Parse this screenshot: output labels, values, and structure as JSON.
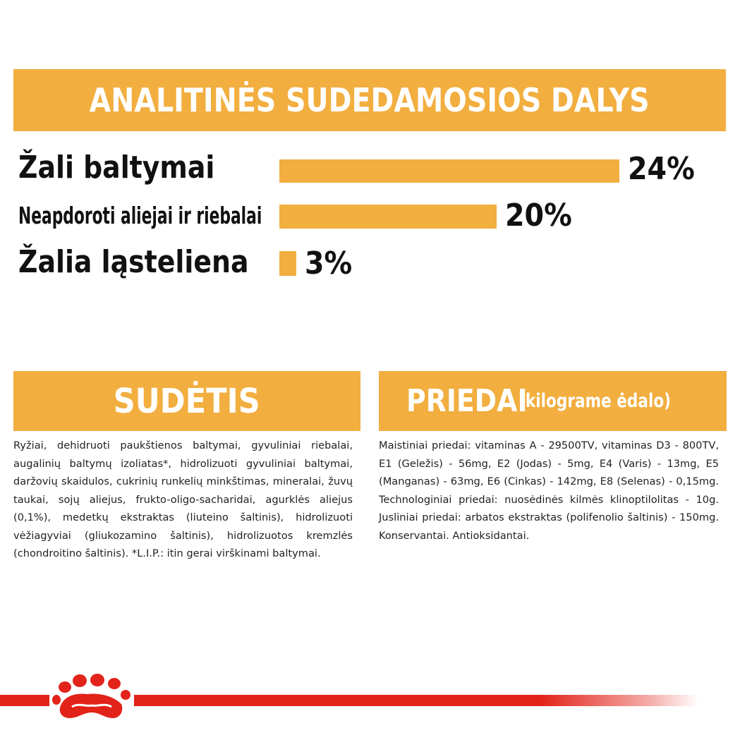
{
  "title": "ANALITINĖS SUDEDAMOSIOS DALYS",
  "nutrients": [
    {
      "label": "Žali baltymai",
      "value": "24%",
      "fraction": 1.0
    },
    {
      "label": "Neapdoroti aliejai ir riebalai",
      "value": "20%",
      "fraction": 0.64
    },
    {
      "label": "Žalia ląsteliena",
      "value": "3%",
      "fraction": 0.05
    }
  ],
  "composition": {
    "heading": "SUDĖTIS",
    "text": "Ryžiai, dehidruoti paukštienos baltymai, gyvuliniai riebalai, augalinių baltymų izoliatas*, hidrolizuoti gyvuliniai baltymai, daržovių skaidulos, cukrinių runkelių minkštimas, mineralai, žuvų taukai, sojų aliejus, frukto-oligo-sacharidai, agurklės aliejus (0,1%), medetkų ekstraktas (liuteino šaltinis), hidrolizuoti vėžiagyviai (gliukozamino šaltinis), hidrolizuotos kremzlės (chondroitino šaltinis). *L.I.P.: itin gerai virškinami baltymai."
  },
  "additives": {
    "heading": "PRIEDAI",
    "heading_note": "(kilograme ėdalo)",
    "text": "Maistiniai priedai: vitaminas A - 29500TV, vitaminas D3 - 800TV, E1 (Geležis) - 56mg, E2 (Jodas) - 5mg, E4 (Varis) - 13mg, E5 (Manganas) - 63mg, E6 (Cinkas) - 142mg, E8 (Selenas) - 0,15mg. Technologiniai priedai: nuosėdinės kilmės klinoptilolitas - 10g. Jusliniai priedai: arbatos ekstraktas (polifenolio šaltinis) - 150mg. Konservantai. Antioksidantai."
  },
  "colors": {
    "accent": "#f2ae3f",
    "brand": "#e2231a"
  },
  "logo": {
    "icon": "royal-canin-crown-icon"
  }
}
